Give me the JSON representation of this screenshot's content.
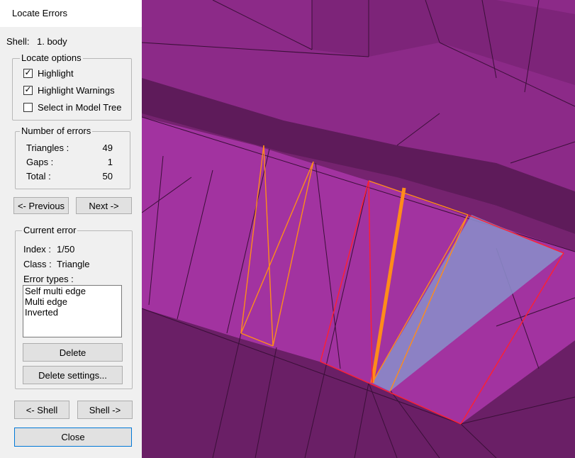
{
  "window": {
    "title": "Locate Errors"
  },
  "shell": {
    "label": "Shell:",
    "value": "1. body"
  },
  "locate_options": {
    "legend": "Locate options",
    "items": [
      {
        "label": "Highlight",
        "checked": true
      },
      {
        "label": "Highlight Warnings",
        "checked": true
      },
      {
        "label": "Select in Model Tree",
        "checked": false
      }
    ]
  },
  "errors_count": {
    "legend": "Number of errors",
    "rows": [
      {
        "label": "Triangles :",
        "value": "49"
      },
      {
        "label": "Gaps :",
        "value": "1"
      },
      {
        "label": "Total :",
        "value": "50"
      }
    ]
  },
  "nav": {
    "previous": "<- Previous",
    "next": "Next ->"
  },
  "current_error": {
    "legend": "Current error",
    "index_label": "Index :",
    "index_value": "1/50",
    "class_label": "Class :",
    "class_value": "Triangle",
    "types_label": "Error types :",
    "types": [
      "Self multi edge",
      "Multi edge",
      "Inverted"
    ],
    "delete": "Delete",
    "delete_settings": "Delete settings..."
  },
  "shell_nav": {
    "previous": "<- Shell",
    "next": "Shell ->"
  },
  "close": "Close",
  "colors": {
    "mesh_face": "#8c2a88",
    "mesh_dark": "#6a1f66",
    "mesh_light": "#a233a0",
    "mesh_edge": "#3a0f38",
    "error_orange": "#ff8c1a",
    "error_red": "#ff2030",
    "inverted_fill": "#8a8ac8"
  }
}
